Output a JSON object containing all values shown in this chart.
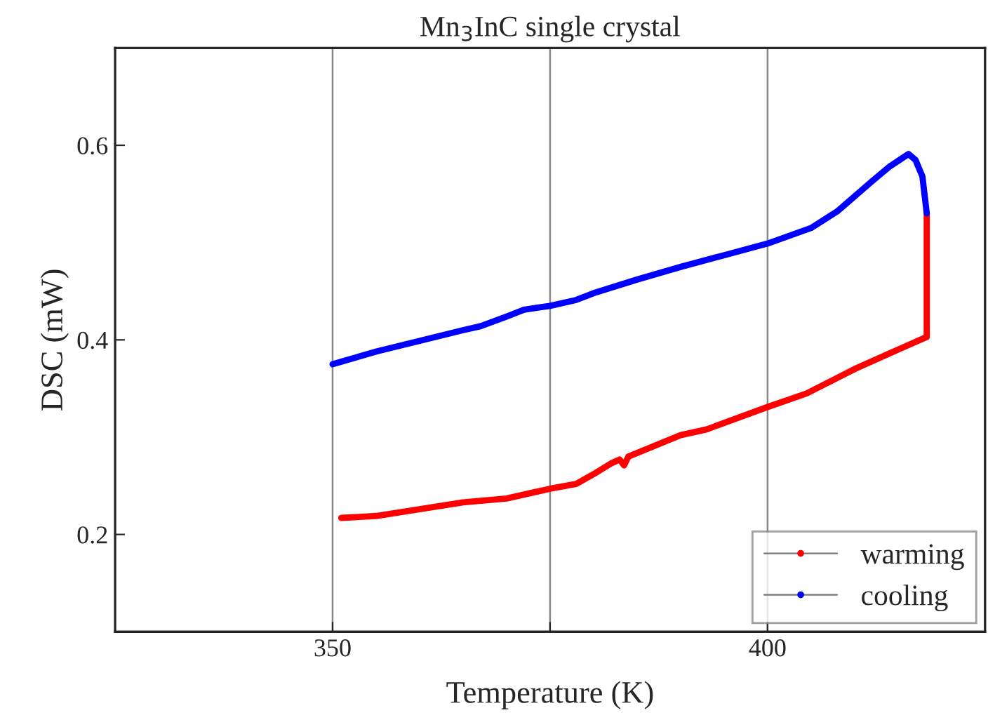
{
  "chart_data": {
    "type": "line",
    "title": "Mn$_{3}$InC single crystal",
    "xlabel": "Temperature (K)",
    "ylabel": "DSC (mW)",
    "xlim": [
      325,
      425
    ],
    "xticks": [
      350,
      {
        "value": 375,
        "label": null
      },
      400
    ],
    "ylim": [
      0.1,
      0.7
    ],
    "yticks": [
      0.2,
      0.4,
      0.6
    ],
    "grid": "x",
    "legend": "bottom right",
    "line_style": "solid",
    "series": [
      {
        "name": "warming",
        "color": "#ff0000",
        "x": [
          351,
          355,
          360,
          365,
          370,
          375,
          378,
          380,
          382,
          383,
          383.5,
          384,
          390,
          393,
          400,
          404.5,
          410,
          415,
          418.3,
          418.3
        ],
        "values": [
          0.217,
          0.219,
          0.226,
          0.233,
          0.237,
          0.247,
          0.252,
          0.262,
          0.273,
          0.277,
          0.271,
          0.28,
          0.302,
          0.308,
          0.331,
          0.345,
          0.37,
          0.39,
          0.403,
          0.53
        ]
      },
      {
        "name": "cooling",
        "color": "#0000ff",
        "x": [
          418.3,
          417.8,
          417,
          416.2,
          414,
          412,
          408,
          405,
          400,
          395,
          390,
          385,
          380,
          378,
          375,
          372,
          370,
          367,
          365,
          360,
          355,
          350
        ],
        "values": [
          0.53,
          0.568,
          0.585,
          0.591,
          0.578,
          0.563,
          0.532,
          0.515,
          0.499,
          0.487,
          0.475,
          0.462,
          0.448,
          0.441,
          0.435,
          0.431,
          0.424,
          0.414,
          0.41,
          0.399,
          0.388,
          0.375
        ]
      }
    ]
  }
}
